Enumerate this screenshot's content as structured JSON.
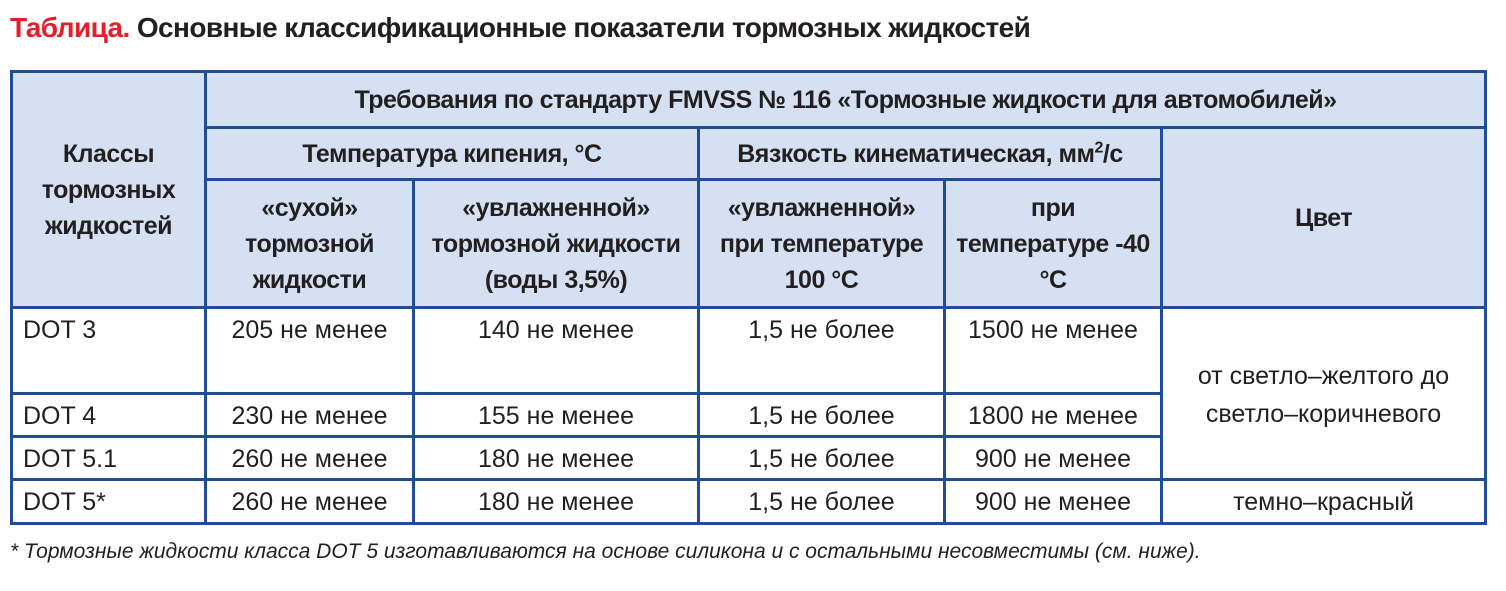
{
  "title": {
    "label": "Таблица.",
    "text": "Основные классификационные показатели тормозных жидкостей"
  },
  "colors": {
    "title_label": "#e41e2a",
    "border": "#1f4e96",
    "header_bg": "#d5e1f2"
  },
  "header": {
    "classes": "Классы тормозных жидкостей",
    "standard": "Требования по стандарту FMVSS № 116 «Тормозные жидкости для автомобилей»",
    "boiling": "Температура кипения, °С",
    "viscosity": "Вязкость кинематическая, мм",
    "viscosity_sup": "2",
    "viscosity_unit": "/с",
    "color": "Цвет",
    "dry": "«сухой» тормозной жидкости",
    "wet": "«увлажненной» тормозной жидкости (воды 3,5%)",
    "visc_wet": "«увлажненной» при температуре 100 °С",
    "visc_cold": "при температуре -40 °С"
  },
  "rows": [
    {
      "class": "DOT 3",
      "dry": "205 не менее",
      "wet": "140 не менее",
      "visc100": "1,5 не более",
      "visc40": "1500 не менее"
    },
    {
      "class": "DOT 4",
      "dry": "230 не менее",
      "wet": "155 не менее",
      "visc100": "1,5 не более",
      "visc40": "1800 не менее"
    },
    {
      "class": "DOT 5.1",
      "dry": "260 не менее",
      "wet": "180 не менее",
      "visc100": "1,5 не более",
      "visc40": "900 не менее"
    },
    {
      "class": "DOT 5*",
      "dry": "260 не менее",
      "wet": "180 не менее",
      "visc100": "1,5 не более",
      "visc40": "900 не менее"
    }
  ],
  "color_values": {
    "glycol": "от светло–желтого до светло–коричневого",
    "silicone": "темно–красный"
  },
  "footnote": "* Тормозные жидкости класса DOT 5 изготавливаются на основе силикона и с остальными несовместимы (см. ниже)."
}
